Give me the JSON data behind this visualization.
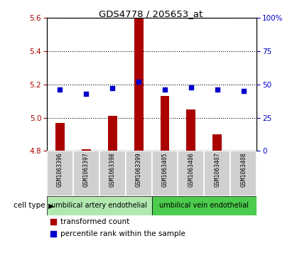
{
  "title": "GDS4778 / 205653_at",
  "samples": [
    "GSM1063396",
    "GSM1063397",
    "GSM1063398",
    "GSM1063399",
    "GSM1063405",
    "GSM1063406",
    "GSM1063407",
    "GSM1063408"
  ],
  "transformed_counts": [
    4.97,
    4.81,
    5.01,
    5.6,
    5.13,
    5.05,
    4.9,
    4.8
  ],
  "percentile_ranks": [
    46,
    43,
    47,
    52,
    46,
    48,
    46,
    45
  ],
  "cell_type_groups": [
    {
      "label": "umbilical artery endothelial",
      "start": 0,
      "end": 3
    },
    {
      "label": "umbilical vein endothelial",
      "start": 4,
      "end": 7
    }
  ],
  "ylim_left": [
    4.8,
    5.6
  ],
  "ylim_right": [
    0,
    100
  ],
  "yticks_left": [
    4.8,
    5.0,
    5.2,
    5.4,
    5.6
  ],
  "yticks_right": [
    0,
    25,
    50,
    75,
    100
  ],
  "ytick_labels_right": [
    "0",
    "25",
    "50",
    "75",
    "100%"
  ],
  "bar_color": "#AA0000",
  "dot_color": "#0000CC",
  "bar_bottom": 4.8,
  "bar_width": 0.35,
  "background_color": "#ffffff",
  "plot_bg_color": "#ffffff",
  "label_area_color_left": "#b0e8b0",
  "label_area_color_right": "#4ccc4c",
  "sample_box_color": "#d0d0d0",
  "tick_label_color_left": "#AA0000",
  "tick_label_color_right": "#0000CC",
  "legend_red_label": "transformed count",
  "legend_blue_label": "percentile rank within the sample",
  "cell_type_label": "cell type"
}
